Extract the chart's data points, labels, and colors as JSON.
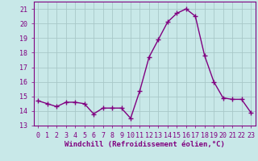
{
  "x": [
    0,
    1,
    2,
    3,
    4,
    5,
    6,
    7,
    8,
    9,
    10,
    11,
    12,
    13,
    14,
    15,
    16,
    17,
    18,
    19,
    20,
    21,
    22,
    23
  ],
  "y": [
    14.7,
    14.5,
    14.3,
    14.6,
    14.6,
    14.5,
    13.8,
    14.2,
    14.2,
    14.2,
    13.5,
    15.4,
    17.7,
    18.9,
    20.1,
    20.7,
    21.0,
    20.5,
    17.8,
    16.0,
    14.9,
    14.8,
    14.8,
    13.9
  ],
  "line_color": "#800080",
  "marker": "+",
  "marker_size": 4,
  "linewidth": 1.0,
  "bg_color": "#c8e8e8",
  "grid_color": "#a8c8c8",
  "xlabel": "Windchill (Refroidissement éolien,°C)",
  "xlabel_fontsize": 6.5,
  "tick_fontsize": 6.0,
  "xlim": [
    -0.5,
    23.5
  ],
  "ylim": [
    13,
    21.5
  ],
  "yticks": [
    13,
    14,
    15,
    16,
    17,
    18,
    19,
    20,
    21
  ],
  "xticks": [
    0,
    1,
    2,
    3,
    4,
    5,
    6,
    7,
    8,
    9,
    10,
    11,
    12,
    13,
    14,
    15,
    16,
    17,
    18,
    19,
    20,
    21,
    22,
    23
  ]
}
